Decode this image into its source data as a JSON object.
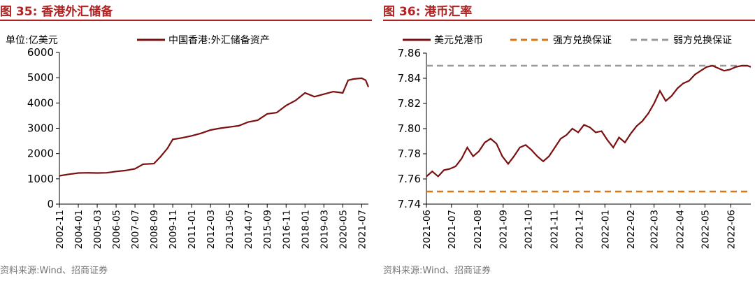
{
  "left": {
    "title": "图 35:  香港外汇储备",
    "source": "资料来源:Wind、招商证券",
    "unit": "单位:亿美元",
    "chart_data": {
      "type": "line",
      "title": "",
      "ylabel": "单位:亿美元",
      "ylim": [
        0,
        6000
      ],
      "yticks": [
        "0",
        "1000",
        "2000",
        "3000",
        "4000",
        "5000",
        "6000"
      ],
      "xlim": [
        "2002-11",
        "2021-12"
      ],
      "xticks": [
        "2002-11",
        "2004-01",
        "2005-03",
        "2006-05",
        "2007-07",
        "2008-09",
        "2009-11",
        "2011-01",
        "2012-03",
        "2013-05",
        "2014-07",
        "2015-09",
        "2016-11",
        "2018-01",
        "2019-03",
        "2020-05",
        "2021-07"
      ],
      "legend_position": "top",
      "grid": false,
      "series": [
        {
          "name": "中国香港:外汇储备资产",
          "color": "#7a1010",
          "points": [
            [
              "2002-11",
              1120
            ],
            [
              "2003-06",
              1180
            ],
            [
              "2004-01",
              1230
            ],
            [
              "2004-08",
              1240
            ],
            [
              "2005-03",
              1230
            ],
            [
              "2005-10",
              1240
            ],
            [
              "2006-05",
              1290
            ],
            [
              "2006-12",
              1330
            ],
            [
              "2007-07",
              1400
            ],
            [
              "2008-01",
              1580
            ],
            [
              "2008-09",
              1600
            ],
            [
              "2009-02",
              1880
            ],
            [
              "2009-07",
              2200
            ],
            [
              "2009-11",
              2560
            ],
            [
              "2010-06",
              2620
            ],
            [
              "2011-01",
              2700
            ],
            [
              "2011-08",
              2800
            ],
            [
              "2012-03",
              2930
            ],
            [
              "2012-10",
              3000
            ],
            [
              "2013-05",
              3050
            ],
            [
              "2013-12",
              3100
            ],
            [
              "2014-07",
              3250
            ],
            [
              "2015-02",
              3320
            ],
            [
              "2015-09",
              3570
            ],
            [
              "2016-04",
              3620
            ],
            [
              "2016-11",
              3900
            ],
            [
              "2017-06",
              4100
            ],
            [
              "2018-01",
              4400
            ],
            [
              "2018-08",
              4250
            ],
            [
              "2019-03",
              4350
            ],
            [
              "2019-10",
              4450
            ],
            [
              "2020-05",
              4400
            ],
            [
              "2020-09",
              4900
            ],
            [
              "2021-01",
              4950
            ],
            [
              "2021-07",
              4980
            ],
            [
              "2021-10",
              4900
            ],
            [
              "2021-12",
              4630
            ]
          ]
        }
      ]
    }
  },
  "right": {
    "title": "图 36:  港币汇率",
    "source": "资料来源:Wind、招商证券",
    "chart_data": {
      "type": "line",
      "title": "",
      "ylim": [
        7.74,
        7.86
      ],
      "yticks": [
        "7.74",
        "7.76",
        "7.78",
        "7.80",
        "7.82",
        "7.84",
        "7.86"
      ],
      "xlim": [
        "2021-06-01",
        "2022-06-25"
      ],
      "xticks": [
        "2021-06",
        "2021-07",
        "2021-08",
        "2021-09",
        "2021-10",
        "2021-11",
        "2021-12",
        "2022-01",
        "2022-02",
        "2022-03",
        "2022-04",
        "2022-05",
        "2022-06"
      ],
      "legend_position": "top",
      "grid": false,
      "series": [
        {
          "name": "美元兑港币",
          "color": "#7a1010",
          "points": [
            [
              "2021-06-01",
              7.762
            ],
            [
              "2021-06-08",
              7.766
            ],
            [
              "2021-06-15",
              7.762
            ],
            [
              "2021-06-22",
              7.767
            ],
            [
              "2021-06-29",
              7.768
            ],
            [
              "2021-07-06",
              7.77
            ],
            [
              "2021-07-13",
              7.776
            ],
            [
              "2021-07-20",
              7.785
            ],
            [
              "2021-07-27",
              7.778
            ],
            [
              "2021-08-03",
              7.782
            ],
            [
              "2021-08-10",
              7.789
            ],
            [
              "2021-08-17",
              7.792
            ],
            [
              "2021-08-24",
              7.788
            ],
            [
              "2021-08-31",
              7.778
            ],
            [
              "2021-09-07",
              7.772
            ],
            [
              "2021-09-14",
              7.778
            ],
            [
              "2021-09-21",
              7.785
            ],
            [
              "2021-09-28",
              7.787
            ],
            [
              "2021-10-05",
              7.783
            ],
            [
              "2021-10-12",
              7.778
            ],
            [
              "2021-10-19",
              7.774
            ],
            [
              "2021-10-26",
              7.778
            ],
            [
              "2021-11-02",
              7.785
            ],
            [
              "2021-11-09",
              7.792
            ],
            [
              "2021-11-16",
              7.795
            ],
            [
              "2021-11-23",
              7.8
            ],
            [
              "2021-11-30",
              7.797
            ],
            [
              "2021-12-07",
              7.803
            ],
            [
              "2021-12-14",
              7.801
            ],
            [
              "2021-12-21",
              7.797
            ],
            [
              "2021-12-28",
              7.798
            ],
            [
              "2022-01-04",
              7.791
            ],
            [
              "2022-01-11",
              7.785
            ],
            [
              "2022-01-18",
              7.793
            ],
            [
              "2022-01-25",
              7.789
            ],
            [
              "2022-02-01",
              7.796
            ],
            [
              "2022-02-08",
              7.802
            ],
            [
              "2022-02-15",
              7.806
            ],
            [
              "2022-02-22",
              7.812
            ],
            [
              "2022-03-01",
              7.82
            ],
            [
              "2022-03-08",
              7.83
            ],
            [
              "2022-03-15",
              7.822
            ],
            [
              "2022-03-22",
              7.826
            ],
            [
              "2022-03-29",
              7.832
            ],
            [
              "2022-04-05",
              7.836
            ],
            [
              "2022-04-12",
              7.838
            ],
            [
              "2022-04-19",
              7.843
            ],
            [
              "2022-04-26",
              7.846
            ],
            [
              "2022-05-03",
              7.849
            ],
            [
              "2022-05-10",
              7.85
            ],
            [
              "2022-05-17",
              7.848
            ],
            [
              "2022-05-24",
              7.846
            ],
            [
              "2022-05-31",
              7.847
            ],
            [
              "2022-06-07",
              7.849
            ],
            [
              "2022-06-14",
              7.85
            ],
            [
              "2022-06-21",
              7.85
            ],
            [
              "2022-06-25",
              7.849
            ]
          ]
        },
        {
          "name": "强方兑换保证",
          "color": "#d4781a",
          "dashed": true,
          "value": 7.75
        },
        {
          "name": "弱方兑换保证",
          "color": "#999999",
          "dashed": true,
          "value": 7.85
        }
      ]
    }
  }
}
